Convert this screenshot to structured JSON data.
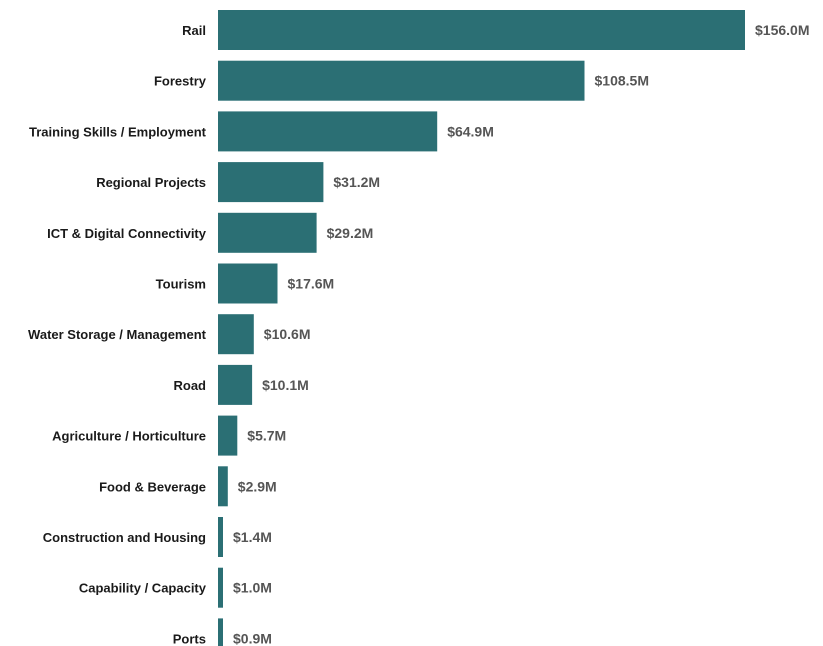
{
  "chart_data": {
    "type": "bar",
    "orientation": "horizontal",
    "categories": [
      "Rail",
      "Forestry",
      "Training Skills / Employment",
      "Regional Projects",
      "ICT & Digital Connectivity",
      "Tourism",
      "Water Storage / Management",
      "Road",
      "Agriculture / Horticulture",
      "Food & Beverage",
      "Construction and Housing",
      "Capability / Capacity",
      "Ports"
    ],
    "values": [
      156.0,
      108.5,
      64.9,
      31.2,
      29.2,
      17.6,
      10.6,
      10.1,
      5.7,
      2.9,
      1.4,
      1.0,
      0.9
    ],
    "value_labels": [
      "$156.0M",
      "$108.5M",
      "$64.9M",
      "$31.2M",
      "$29.2M",
      "$17.6M",
      "$10.6M",
      "$10.1M",
      "$5.7M",
      "$2.9M",
      "$1.4M",
      "$1.0M",
      "$0.9M"
    ],
    "bar_color": "#2b6f74",
    "xlim": [
      0,
      156.0
    ],
    "grid": false,
    "legend": "none"
  }
}
